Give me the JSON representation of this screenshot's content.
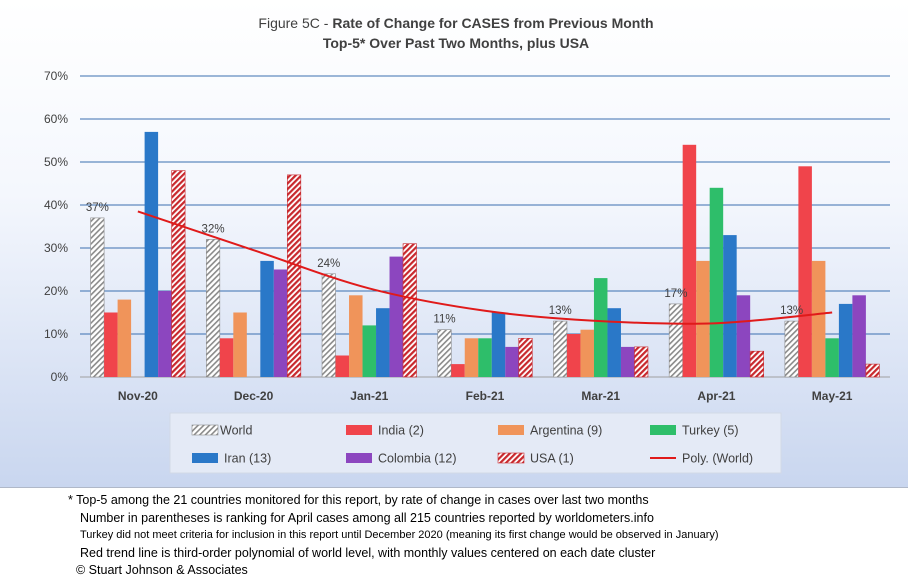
{
  "title": {
    "prefix": "Figure 5C - ",
    "main": "Rate of Change for CASES from Previous Month",
    "line2": "Top-5* Over Past Two Months, plus USA"
  },
  "chart_data": {
    "type": "bar",
    "categories": [
      "Nov-20",
      "Dec-20",
      "Jan-21",
      "Feb-21",
      "Mar-21",
      "Apr-21",
      "May-21"
    ],
    "y_ticks": [
      "0%",
      "10%",
      "20%",
      "30%",
      "40%",
      "50%",
      "60%",
      "70%"
    ],
    "ylim": [
      0,
      70
    ],
    "y_unit": "percent",
    "grid": true,
    "legend_position": "bottom",
    "series": [
      {
        "name": "World",
        "values": [
          37,
          32,
          24,
          11,
          13,
          17,
          13
        ],
        "color": "#ffffff",
        "pattern": "diagonal-gray"
      },
      {
        "name": "India (2)",
        "values": [
          15,
          9,
          5,
          3,
          10,
          54,
          49
        ],
        "color": "#f0444b"
      },
      {
        "name": "Argentina (9)",
        "values": [
          18,
          15,
          19,
          9,
          11,
          27,
          27
        ],
        "color": "#f0945a"
      },
      {
        "name": "Turkey (5)",
        "values": [
          null,
          null,
          12,
          9,
          23,
          44,
          9
        ],
        "color": "#2ebe6a"
      },
      {
        "name": "Iran (13)",
        "values": [
          57,
          27,
          16,
          15,
          16,
          33,
          17
        ],
        "color": "#2a78c8"
      },
      {
        "name": "Colombia (12)",
        "values": [
          20,
          25,
          28,
          7,
          7,
          19,
          19
        ],
        "color": "#8c46bf"
      },
      {
        "name": "USA (1)",
        "values": [
          48,
          47,
          31,
          9,
          7,
          6,
          3
        ],
        "color": "#c8282d",
        "pattern": "diagonal-red"
      }
    ],
    "data_labels": {
      "series": "World",
      "labels": [
        "37%",
        "32%",
        "24%",
        "11%",
        "13%",
        "17%",
        "13%"
      ]
    },
    "trendline": {
      "name": "Poly. (World)",
      "type": "polynomial-3",
      "color": "#e01a1a",
      "values": [
        38.5,
        29.5,
        20.6,
        15.4,
        13.0,
        12.5,
        15.0
      ]
    }
  },
  "notes": [
    "* Top-5 among the 21 countries monitored for this report, by rate of change in cases over last two months",
    "Number in parentheses is ranking for April cases among all 215 countries reported by worldometers.info",
    "Turkey did not meet criteria for inclusion in this report until December 2020 (meaning its first change would be observed in January)",
    "Red trend line is third-order polynomial of world level, with monthly values centered on each date cluster",
    "© Stuart Johnson & Associates"
  ]
}
